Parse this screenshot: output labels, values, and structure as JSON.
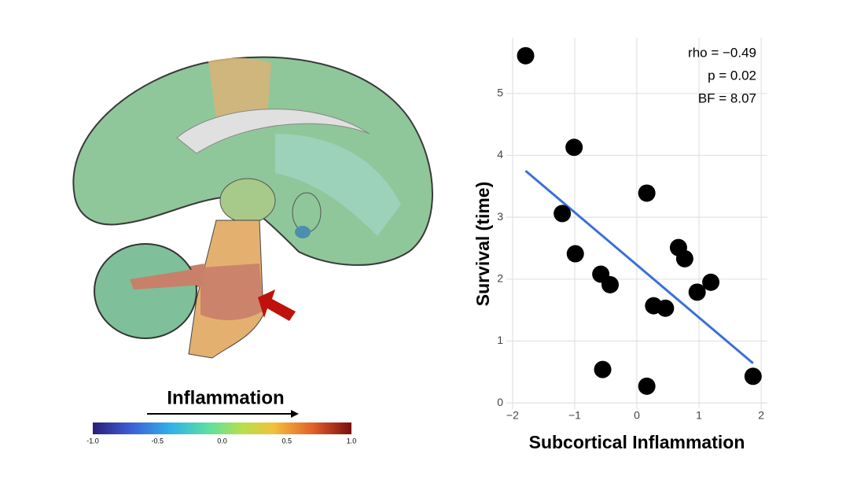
{
  "chart_data": {
    "type": "scatter",
    "x_label": "Subcortical Inflammation",
    "y_label": "Survival (time)",
    "x": [
      -1.79,
      -1.01,
      -1.2,
      -0.99,
      -0.58,
      -0.43,
      0.16,
      0.27,
      0.46,
      0.67,
      0.77,
      0.97,
      1.19,
      -0.55,
      0.16,
      1.87
    ],
    "values": [
      5.61,
      4.13,
      3.06,
      2.41,
      2.08,
      1.91,
      3.39,
      1.57,
      1.53,
      2.51,
      2.33,
      1.79,
      1.95,
      0.54,
      0.27,
      0.43
    ],
    "color": "#000000",
    "fit_line": {
      "x": [
        -1.79,
        1.87
      ],
      "y": [
        3.75,
        0.64
      ],
      "color": "#3a6fd8"
    },
    "annotations": [
      "rho = −0.49",
      "p = 0.02",
      "BF = 8.07"
    ],
    "xlim": [
      -2.1,
      2.1
    ],
    "xticks": [
      {
        "value": -2,
        "label": "−2"
      },
      {
        "value": -1,
        "label": "−1"
      },
      0,
      1,
      2
    ],
    "ylim": [
      -0.1,
      5.9
    ],
    "yticks": [
      0,
      1,
      2,
      3,
      4,
      5
    ],
    "grid": true
  },
  "colorbar": {
    "title": "Inflammation",
    "lim": [
      -1,
      1
    ],
    "ticks": [
      {
        "value": -1,
        "label": "-1.0"
      },
      {
        "value": -0.5,
        "label": "-0.5"
      },
      {
        "value": 0,
        "label": "0.0"
      },
      {
        "value": 0.5,
        "label": "0.5"
      },
      {
        "value": 1,
        "label": "1.0"
      }
    ]
  }
}
